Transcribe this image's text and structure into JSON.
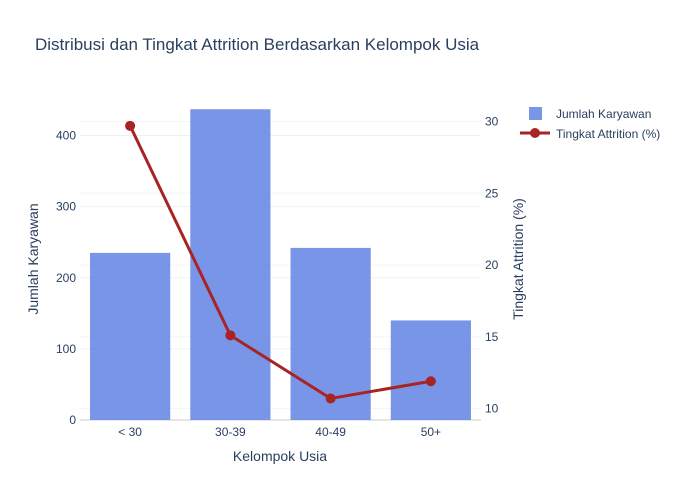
{
  "chart_data": {
    "type": "bar",
    "title": "Distribusi dan Tingkat Attrition Berdasarkan Kelompok Usia",
    "xlabel": "Kelompok Usia",
    "ylabel": "Jumlah Karyawan",
    "y2label": "Tingkat Attrition (%)",
    "categories": [
      "< 30",
      "30-39",
      "40-49",
      "50+"
    ],
    "ylim": [
      0,
      450
    ],
    "y2lim": [
      9.2,
      31.5
    ],
    "yticks": [
      0,
      100,
      200,
      300,
      400
    ],
    "y2ticks": [
      10,
      15,
      20,
      25,
      30
    ],
    "grid": true,
    "legend_position": "top-right",
    "series": [
      {
        "name": "Jumlah Karyawan",
        "type": "bar",
        "axis": "left",
        "color": "#6a89e6",
        "values": [
          235,
          437,
          242,
          140
        ]
      },
      {
        "name": "Tingkat Attrition (%)",
        "type": "line",
        "axis": "right",
        "color": "#a82323",
        "values": [
          29.7,
          15.1,
          10.7,
          11.9
        ]
      }
    ]
  }
}
